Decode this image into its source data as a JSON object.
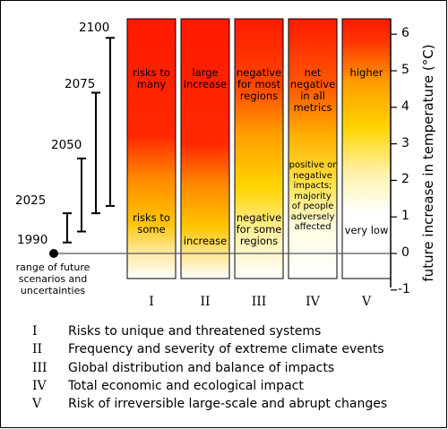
{
  "years": [
    {
      "label": "2100",
      "value": 5.9
    },
    {
      "label": "2075",
      "value": 4.4
    },
    {
      "label": "2050",
      "value": 2.6
    },
    {
      "label": "2025",
      "value": 1.1
    },
    {
      "label": "1990",
      "value": 0
    }
  ],
  "range_label": "range of future scenarios and uncertainties",
  "axis": {
    "label": "future increase in temperature (°C)",
    "ticks": [
      "6",
      "5",
      "4",
      "3",
      "2",
      "1",
      "0",
      "-1"
    ]
  },
  "columns": [
    {
      "numeral": "I",
      "upper": "risks to many",
      "lower": "risks to some"
    },
    {
      "numeral": "II",
      "upper": "large increase",
      "lower": "increase"
    },
    {
      "numeral": "III",
      "upper": "negative for most regions",
      "lower": "negative for some regions"
    },
    {
      "numeral": "IV",
      "upper": "net negative in all metrics",
      "lower": "positive or negative impacts; majority of people adversely affected"
    },
    {
      "numeral": "V",
      "upper": "higher",
      "lower": "very low"
    }
  ],
  "legend": [
    {
      "numeral": "I",
      "text": "Risks to unique and threatened systems"
    },
    {
      "numeral": "II",
      "text": "Frequency and severity of extreme climate events"
    },
    {
      "numeral": "III",
      "text": "Global distribution and balance of impacts"
    },
    {
      "numeral": "IV",
      "text": "Total economic and ecological impact"
    },
    {
      "numeral": "V",
      "text": "Risk of irreversible large-scale and abrupt changes"
    }
  ],
  "colors": {
    "red": "#ff0000",
    "orange": "#ff8c00",
    "yellow": "#ffd700",
    "white": "#ffffff",
    "line": "#000000",
    "axis_line": "#555555"
  }
}
